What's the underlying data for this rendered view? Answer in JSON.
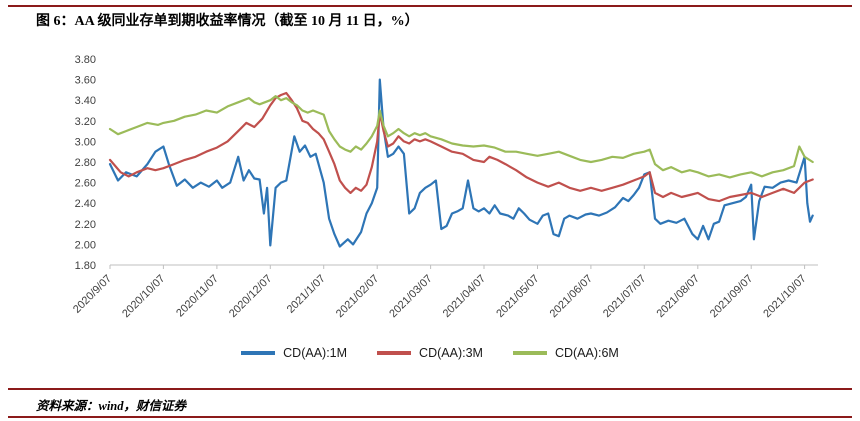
{
  "page": {
    "title": "图 6：AA 级同业存单到期收益率情况（截至 10 月 11 日，%）",
    "source": "资料来源：wind，财信证券",
    "accent_color": "#8B1A1A"
  },
  "chart_data": {
    "type": "line",
    "title": "图 6：AA 级同业存单到期收益率情况（截至 10 月 11 日，%）",
    "xlabel": "",
    "ylabel": "",
    "ylim": [
      1.8,
      3.8
    ],
    "ytick_step": 0.2,
    "y_ticks": [
      "1.80",
      "2.00",
      "2.20",
      "2.40",
      "2.60",
      "2.80",
      "3.00",
      "3.20",
      "3.40",
      "3.60",
      "3.80"
    ],
    "x_ticks": [
      "2020/9/07",
      "2020/10/07",
      "2020/11/07",
      "2020/12/07",
      "2021/1/07",
      "2021/02/07",
      "2021/03/07",
      "2021/04/07",
      "2021/05/07",
      "2021/06/07",
      "2021/07/07",
      "2021/08/07",
      "2021/09/07",
      "2021/10/07"
    ],
    "x_range_months": [
      0,
      13.25
    ],
    "grid": false,
    "legend_position": "bottom",
    "series": [
      {
        "name": "CD(AA):1M",
        "color": "#2E75B6",
        "points": [
          [
            0,
            2.78
          ],
          [
            0.15,
            2.62
          ],
          [
            0.3,
            2.7
          ],
          [
            0.5,
            2.66
          ],
          [
            0.7,
            2.78
          ],
          [
            0.85,
            2.9
          ],
          [
            1,
            2.95
          ],
          [
            1.1,
            2.78
          ],
          [
            1.25,
            2.57
          ],
          [
            1.4,
            2.63
          ],
          [
            1.55,
            2.55
          ],
          [
            1.7,
            2.6
          ],
          [
            1.85,
            2.56
          ],
          [
            2,
            2.62
          ],
          [
            2.1,
            2.55
          ],
          [
            2.25,
            2.6
          ],
          [
            2.4,
            2.85
          ],
          [
            2.5,
            2.62
          ],
          [
            2.6,
            2.72
          ],
          [
            2.7,
            2.64
          ],
          [
            2.8,
            2.63
          ],
          [
            2.88,
            2.3
          ],
          [
            2.94,
            2.55
          ],
          [
            3,
            1.99
          ],
          [
            3.1,
            2.55
          ],
          [
            3.2,
            2.6
          ],
          [
            3.3,
            2.62
          ],
          [
            3.45,
            3.05
          ],
          [
            3.55,
            2.9
          ],
          [
            3.65,
            2.96
          ],
          [
            3.75,
            2.85
          ],
          [
            3.85,
            2.88
          ],
          [
            4,
            2.6
          ],
          [
            4.1,
            2.25
          ],
          [
            4.2,
            2.1
          ],
          [
            4.3,
            1.98
          ],
          [
            4.45,
            2.05
          ],
          [
            4.55,
            2
          ],
          [
            4.7,
            2.12
          ],
          [
            4.8,
            2.3
          ],
          [
            4.9,
            2.4
          ],
          [
            5,
            2.55
          ],
          [
            5.05,
            3.6
          ],
          [
            5.12,
            3.12
          ],
          [
            5.2,
            2.85
          ],
          [
            5.3,
            2.88
          ],
          [
            5.4,
            2.95
          ],
          [
            5.5,
            2.88
          ],
          [
            5.6,
            2.3
          ],
          [
            5.7,
            2.35
          ],
          [
            5.8,
            2.5
          ],
          [
            5.9,
            2.55
          ],
          [
            6,
            2.58
          ],
          [
            6.1,
            2.62
          ],
          [
            6.2,
            2.15
          ],
          [
            6.3,
            2.18
          ],
          [
            6.4,
            2.3
          ],
          [
            6.5,
            2.32
          ],
          [
            6.6,
            2.35
          ],
          [
            6.7,
            2.62
          ],
          [
            6.8,
            2.35
          ],
          [
            6.9,
            2.32
          ],
          [
            7,
            2.35
          ],
          [
            7.1,
            2.3
          ],
          [
            7.2,
            2.38
          ],
          [
            7.3,
            2.3
          ],
          [
            7.45,
            2.28
          ],
          [
            7.55,
            2.25
          ],
          [
            7.65,
            2.35
          ],
          [
            7.75,
            2.3
          ],
          [
            7.85,
            2.24
          ],
          [
            8,
            2.2
          ],
          [
            8.1,
            2.28
          ],
          [
            8.2,
            2.3
          ],
          [
            8.3,
            2.1
          ],
          [
            8.4,
            2.08
          ],
          [
            8.5,
            2.25
          ],
          [
            8.6,
            2.28
          ],
          [
            8.75,
            2.25
          ],
          [
            8.9,
            2.29
          ],
          [
            9,
            2.3
          ],
          [
            9.15,
            2.28
          ],
          [
            9.3,
            2.31
          ],
          [
            9.45,
            2.36
          ],
          [
            9.6,
            2.45
          ],
          [
            9.7,
            2.42
          ],
          [
            9.8,
            2.48
          ],
          [
            9.9,
            2.55
          ],
          [
            10,
            2.68
          ],
          [
            10.1,
            2.7
          ],
          [
            10.2,
            2.25
          ],
          [
            10.3,
            2.2
          ],
          [
            10.45,
            2.23
          ],
          [
            10.6,
            2.21
          ],
          [
            10.75,
            2.25
          ],
          [
            10.9,
            2.1
          ],
          [
            11,
            2.05
          ],
          [
            11.1,
            2.18
          ],
          [
            11.2,
            2.05
          ],
          [
            11.3,
            2.2
          ],
          [
            11.4,
            2.22
          ],
          [
            11.5,
            2.38
          ],
          [
            11.65,
            2.4
          ],
          [
            11.8,
            2.42
          ],
          [
            11.9,
            2.46
          ],
          [
            12,
            2.58
          ],
          [
            12.05,
            2.05
          ],
          [
            12.15,
            2.42
          ],
          [
            12.25,
            2.56
          ],
          [
            12.4,
            2.55
          ],
          [
            12.55,
            2.6
          ],
          [
            12.7,
            2.62
          ],
          [
            12.85,
            2.6
          ],
          [
            13,
            2.85
          ],
          [
            13.05,
            2.4
          ],
          [
            13.1,
            2.22
          ],
          [
            13.15,
            2.28
          ]
        ]
      },
      {
        "name": "CD(AA):3M",
        "color": "#C0504D",
        "points": [
          [
            0,
            2.82
          ],
          [
            0.2,
            2.7
          ],
          [
            0.35,
            2.66
          ],
          [
            0.5,
            2.7
          ],
          [
            0.7,
            2.74
          ],
          [
            0.85,
            2.72
          ],
          [
            1,
            2.74
          ],
          [
            1.2,
            2.78
          ],
          [
            1.4,
            2.82
          ],
          [
            1.6,
            2.85
          ],
          [
            1.8,
            2.9
          ],
          [
            2,
            2.94
          ],
          [
            2.2,
            3
          ],
          [
            2.4,
            3.1
          ],
          [
            2.55,
            3.18
          ],
          [
            2.7,
            3.14
          ],
          [
            2.85,
            3.22
          ],
          [
            3,
            3.35
          ],
          [
            3.1,
            3.42
          ],
          [
            3.2,
            3.45
          ],
          [
            3.3,
            3.47
          ],
          [
            3.4,
            3.4
          ],
          [
            3.5,
            3.32
          ],
          [
            3.6,
            3.2
          ],
          [
            3.7,
            3.18
          ],
          [
            3.8,
            3.12
          ],
          [
            3.9,
            3.08
          ],
          [
            4,
            3.02
          ],
          [
            4.1,
            2.9
          ],
          [
            4.2,
            2.78
          ],
          [
            4.3,
            2.62
          ],
          [
            4.4,
            2.55
          ],
          [
            4.5,
            2.5
          ],
          [
            4.6,
            2.55
          ],
          [
            4.7,
            2.52
          ],
          [
            4.8,
            2.58
          ],
          [
            4.9,
            2.75
          ],
          [
            5,
            3
          ],
          [
            5.05,
            3.28
          ],
          [
            5.12,
            3.1
          ],
          [
            5.2,
            2.95
          ],
          [
            5.3,
            2.98
          ],
          [
            5.4,
            3.05
          ],
          [
            5.5,
            3
          ],
          [
            5.6,
            2.98
          ],
          [
            5.7,
            3.02
          ],
          [
            5.8,
            3
          ],
          [
            5.9,
            3.02
          ],
          [
            6,
            3
          ],
          [
            6.2,
            2.95
          ],
          [
            6.4,
            2.9
          ],
          [
            6.6,
            2.88
          ],
          [
            6.8,
            2.82
          ],
          [
            7,
            2.8
          ],
          [
            7.1,
            2.85
          ],
          [
            7.25,
            2.82
          ],
          [
            7.4,
            2.78
          ],
          [
            7.6,
            2.72
          ],
          [
            7.8,
            2.65
          ],
          [
            8,
            2.6
          ],
          [
            8.2,
            2.56
          ],
          [
            8.4,
            2.6
          ],
          [
            8.6,
            2.55
          ],
          [
            8.8,
            2.52
          ],
          [
            9,
            2.55
          ],
          [
            9.2,
            2.52
          ],
          [
            9.4,
            2.55
          ],
          [
            9.6,
            2.58
          ],
          [
            9.8,
            2.62
          ],
          [
            10,
            2.66
          ],
          [
            10.1,
            2.7
          ],
          [
            10.2,
            2.5
          ],
          [
            10.35,
            2.46
          ],
          [
            10.5,
            2.5
          ],
          [
            10.7,
            2.46
          ],
          [
            10.85,
            2.48
          ],
          [
            11,
            2.5
          ],
          [
            11.2,
            2.44
          ],
          [
            11.4,
            2.42
          ],
          [
            11.6,
            2.46
          ],
          [
            11.8,
            2.48
          ],
          [
            12,
            2.5
          ],
          [
            12.2,
            2.46
          ],
          [
            12.4,
            2.5
          ],
          [
            12.6,
            2.54
          ],
          [
            12.8,
            2.5
          ],
          [
            12.9,
            2.55
          ],
          [
            13,
            2.6
          ],
          [
            13.15,
            2.63
          ]
        ]
      },
      {
        "name": "CD(AA):6M",
        "color": "#9BBB59",
        "points": [
          [
            0,
            3.12
          ],
          [
            0.15,
            3.07
          ],
          [
            0.3,
            3.1
          ],
          [
            0.5,
            3.14
          ],
          [
            0.7,
            3.18
          ],
          [
            0.9,
            3.16
          ],
          [
            1,
            3.18
          ],
          [
            1.2,
            3.2
          ],
          [
            1.4,
            3.24
          ],
          [
            1.6,
            3.26
          ],
          [
            1.8,
            3.3
          ],
          [
            2,
            3.28
          ],
          [
            2.2,
            3.34
          ],
          [
            2.4,
            3.38
          ],
          [
            2.6,
            3.42
          ],
          [
            2.7,
            3.38
          ],
          [
            2.8,
            3.36
          ],
          [
            3,
            3.4
          ],
          [
            3.1,
            3.44
          ],
          [
            3.2,
            3.4
          ],
          [
            3.3,
            3.42
          ],
          [
            3.4,
            3.38
          ],
          [
            3.5,
            3.35
          ],
          [
            3.6,
            3.3
          ],
          [
            3.7,
            3.28
          ],
          [
            3.8,
            3.3
          ],
          [
            3.9,
            3.28
          ],
          [
            4,
            3.26
          ],
          [
            4.1,
            3.1
          ],
          [
            4.2,
            3.02
          ],
          [
            4.3,
            2.95
          ],
          [
            4.4,
            2.92
          ],
          [
            4.5,
            2.9
          ],
          [
            4.6,
            2.95
          ],
          [
            4.7,
            2.92
          ],
          [
            4.8,
            2.98
          ],
          [
            4.9,
            3.05
          ],
          [
            5,
            3.15
          ],
          [
            5.05,
            3.3
          ],
          [
            5.12,
            3.15
          ],
          [
            5.2,
            3.05
          ],
          [
            5.3,
            3.08
          ],
          [
            5.4,
            3.12
          ],
          [
            5.5,
            3.08
          ],
          [
            5.6,
            3.05
          ],
          [
            5.7,
            3.08
          ],
          [
            5.8,
            3.06
          ],
          [
            5.9,
            3.08
          ],
          [
            6,
            3.05
          ],
          [
            6.2,
            3.02
          ],
          [
            6.4,
            2.98
          ],
          [
            6.6,
            2.96
          ],
          [
            6.8,
            2.95
          ],
          [
            7,
            2.96
          ],
          [
            7.2,
            2.94
          ],
          [
            7.4,
            2.9
          ],
          [
            7.6,
            2.9
          ],
          [
            7.8,
            2.88
          ],
          [
            8,
            2.86
          ],
          [
            8.2,
            2.88
          ],
          [
            8.4,
            2.9
          ],
          [
            8.6,
            2.86
          ],
          [
            8.8,
            2.82
          ],
          [
            9,
            2.8
          ],
          [
            9.2,
            2.82
          ],
          [
            9.4,
            2.85
          ],
          [
            9.6,
            2.84
          ],
          [
            9.8,
            2.88
          ],
          [
            10,
            2.9
          ],
          [
            10.1,
            2.92
          ],
          [
            10.2,
            2.78
          ],
          [
            10.35,
            2.72
          ],
          [
            10.5,
            2.75
          ],
          [
            10.7,
            2.7
          ],
          [
            10.85,
            2.72
          ],
          [
            11,
            2.7
          ],
          [
            11.2,
            2.66
          ],
          [
            11.4,
            2.68
          ],
          [
            11.6,
            2.65
          ],
          [
            11.8,
            2.68
          ],
          [
            12,
            2.7
          ],
          [
            12.2,
            2.66
          ],
          [
            12.4,
            2.7
          ],
          [
            12.6,
            2.72
          ],
          [
            12.8,
            2.76
          ],
          [
            12.9,
            2.95
          ],
          [
            13,
            2.85
          ],
          [
            13.15,
            2.8
          ]
        ]
      }
    ]
  }
}
